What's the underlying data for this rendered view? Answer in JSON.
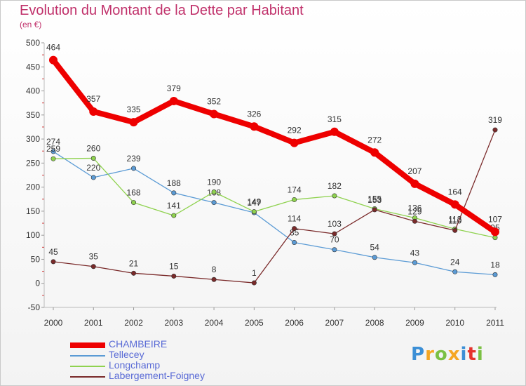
{
  "title": "Evolution du Montant de la Dette par Habitant",
  "unit": "(en €)",
  "brand": [
    "P",
    "r",
    "o",
    "x",
    "i",
    "t",
    "i"
  ],
  "brand_colors": [
    "#3c8fd6",
    "#f5a623",
    "#7bc043",
    "#f5a623",
    "#3c8fd6",
    "#e5322d",
    "#7bc043"
  ],
  "chart_data": {
    "type": "line",
    "title": "Evolution du Montant de la Dette par Habitant",
    "ylabel": "(en €)",
    "x": [
      "2000",
      "2001",
      "2002",
      "2003",
      "2004",
      "2005",
      "2006",
      "2007",
      "2008",
      "2009",
      "2010",
      "2011"
    ],
    "ylim": [
      -50,
      500
    ],
    "yticks": [
      -50,
      0,
      50,
      100,
      150,
      200,
      250,
      300,
      350,
      400,
      450,
      500
    ],
    "grid": false,
    "legend_position": "bottom-left",
    "series": [
      {
        "name": "CHAMBEIRE",
        "color": "#ee0000",
        "values": [
          464,
          357,
          335,
          379,
          352,
          326,
          292,
          315,
          272,
          207,
          164,
          107
        ]
      },
      {
        "name": "Tellecey",
        "color": "#5b9bd5",
        "values": [
          274,
          220,
          239,
          188,
          168,
          147,
          85,
          70,
          54,
          43,
          24,
          18
        ]
      },
      {
        "name": "Longchamp",
        "color": "#8fd24f",
        "values": [
          259,
          260,
          168,
          141,
          190,
          149,
          174,
          182,
          155,
          136,
          113,
          95
        ]
      },
      {
        "name": "Labergement-Foigney",
        "color": "#7a2a2a",
        "values": [
          45,
          35,
          21,
          15,
          8,
          1,
          114,
          103,
          153,
          129,
          110,
          319
        ]
      }
    ]
  }
}
